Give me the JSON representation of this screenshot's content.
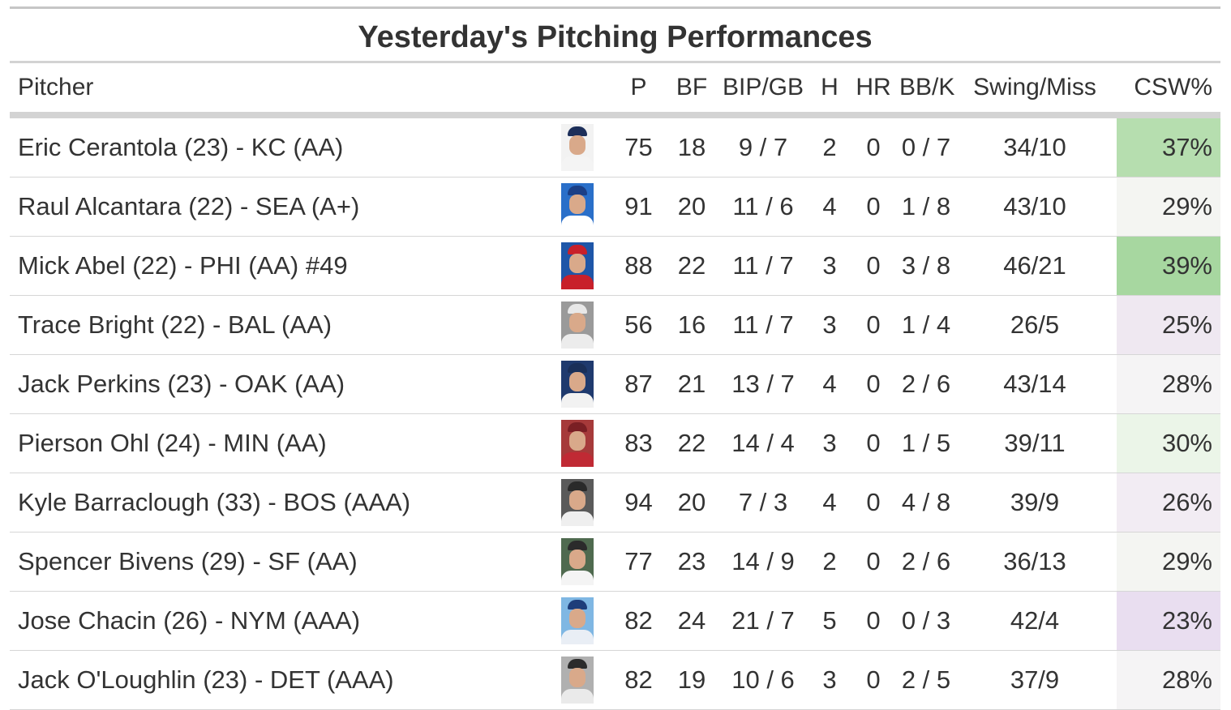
{
  "title": "Yesterday's Pitching Performances",
  "columns": {
    "pitcher": "Pitcher",
    "p": "P",
    "bf": "BF",
    "bip_gb": "BIP/GB",
    "h": "H",
    "hr": "HR",
    "bb_k": "BB/K",
    "swing_miss": "Swing/Miss",
    "csw": "CSW%"
  },
  "rows": [
    {
      "pitcher": "Eric Cerantola (23) - KC (AA)",
      "headshot_icon": "player-headshot-icon",
      "bg": "#f2f2f2",
      "cap": "#1d2f5a",
      "shirt": "#f4f4f4",
      "p": "75",
      "bf": "18",
      "bip_gb": "9 / 7",
      "h": "2",
      "hr": "0",
      "bb_k": "0 / 7",
      "swing_miss": "34/10",
      "csw": "37%",
      "csw_color": "#b6deaf"
    },
    {
      "pitcher": "Raul Alcantara (22) - SEA (A+)",
      "headshot_icon": "player-headshot-icon",
      "bg": "#2a6fc9",
      "cap": "#1b3f86",
      "shirt": "#ffffff",
      "p": "91",
      "bf": "20",
      "bip_gb": "11 / 6",
      "h": "4",
      "hr": "0",
      "bb_k": "1 / 8",
      "swing_miss": "43/10",
      "csw": "29%",
      "csw_color": "#f4f5f2"
    },
    {
      "pitcher": "Mick Abel (22) - PHI (AA) #49",
      "headshot_icon": "player-headshot-icon",
      "bg": "#1e56a8",
      "cap": "#c8202a",
      "shirt": "#c8202a",
      "p": "88",
      "bf": "22",
      "bip_gb": "11 / 7",
      "h": "3",
      "hr": "0",
      "bb_k": "3 / 8",
      "swing_miss": "46/21",
      "csw": "39%",
      "csw_color": "#a7d7a0"
    },
    {
      "pitcher": "Trace Bright (22) - BAL (AA)",
      "headshot_icon": "player-headshot-icon",
      "bg": "#9a9a9a",
      "cap": "#e8e8e8",
      "shirt": "#ececec",
      "p": "56",
      "bf": "16",
      "bip_gb": "11 / 7",
      "h": "3",
      "hr": "0",
      "bb_k": "1 / 4",
      "swing_miss": "26/5",
      "csw": "25%",
      "csw_color": "#efe8f1"
    },
    {
      "pitcher": "Jack Perkins (23) - OAK (AA)",
      "headshot_icon": "player-headshot-icon",
      "bg": "#1f3a6e",
      "cap": "#1a2f58",
      "shirt": "#f2f2f2",
      "p": "87",
      "bf": "21",
      "bip_gb": "13 / 7",
      "h": "4",
      "hr": "0",
      "bb_k": "2 / 6",
      "swing_miss": "43/14",
      "csw": "28%",
      "csw_color": "#f5f4f5"
    },
    {
      "pitcher": "Pierson Ohl (24) - MIN (AA)",
      "headshot_icon": "player-headshot-icon",
      "bg": "#a63a3a",
      "cap": "#7a1f24",
      "shirt": "#c02a34",
      "p": "83",
      "bf": "22",
      "bip_gb": "14 / 4",
      "h": "3",
      "hr": "0",
      "bb_k": "1 / 5",
      "swing_miss": "39/11",
      "csw": "30%",
      "csw_color": "#ebf5e8"
    },
    {
      "pitcher": "Kyle Barraclough (33) - BOS (AAA)",
      "headshot_icon": "player-headshot-icon",
      "bg": "#5a5a5a",
      "cap": "#2a2a2a",
      "shirt": "#efefef",
      "p": "94",
      "bf": "20",
      "bip_gb": "7 / 3",
      "h": "4",
      "hr": "0",
      "bb_k": "4 / 8",
      "swing_miss": "39/9",
      "csw": "26%",
      "csw_color": "#f2ecf3"
    },
    {
      "pitcher": "Spencer Bivens (29) - SF (AA)",
      "headshot_icon": "player-headshot-icon",
      "bg": "#4f6a4f",
      "cap": "#2b2b2b",
      "shirt": "#f4f4f4",
      "p": "77",
      "bf": "23",
      "bip_gb": "14 / 9",
      "h": "2",
      "hr": "0",
      "bb_k": "2 / 6",
      "swing_miss": "36/13",
      "csw": "29%",
      "csw_color": "#f4f5f2"
    },
    {
      "pitcher": "Jose Chacin (26) - NYM (AAA)",
      "headshot_icon": "player-headshot-icon",
      "bg": "#7fb7e3",
      "cap": "#1e3d7a",
      "shirt": "#e9eef5",
      "p": "82",
      "bf": "24",
      "bip_gb": "21 / 7",
      "h": "5",
      "hr": "0",
      "bb_k": "0 / 3",
      "swing_miss": "42/4",
      "csw": "23%",
      "csw_color": "#e9def0"
    },
    {
      "pitcher": "Jack O'Loughlin (23) - DET (AAA)",
      "headshot_icon": "player-headshot-icon",
      "bg": "#b0b0b0",
      "cap": "#2b2b2b",
      "shirt": "#eaeaea",
      "p": "82",
      "bf": "19",
      "bip_gb": "10 / 6",
      "h": "3",
      "hr": "0",
      "bb_k": "2 / 5",
      "swing_miss": "37/9",
      "csw": "28%",
      "csw_color": "#f5f4f5"
    }
  ]
}
